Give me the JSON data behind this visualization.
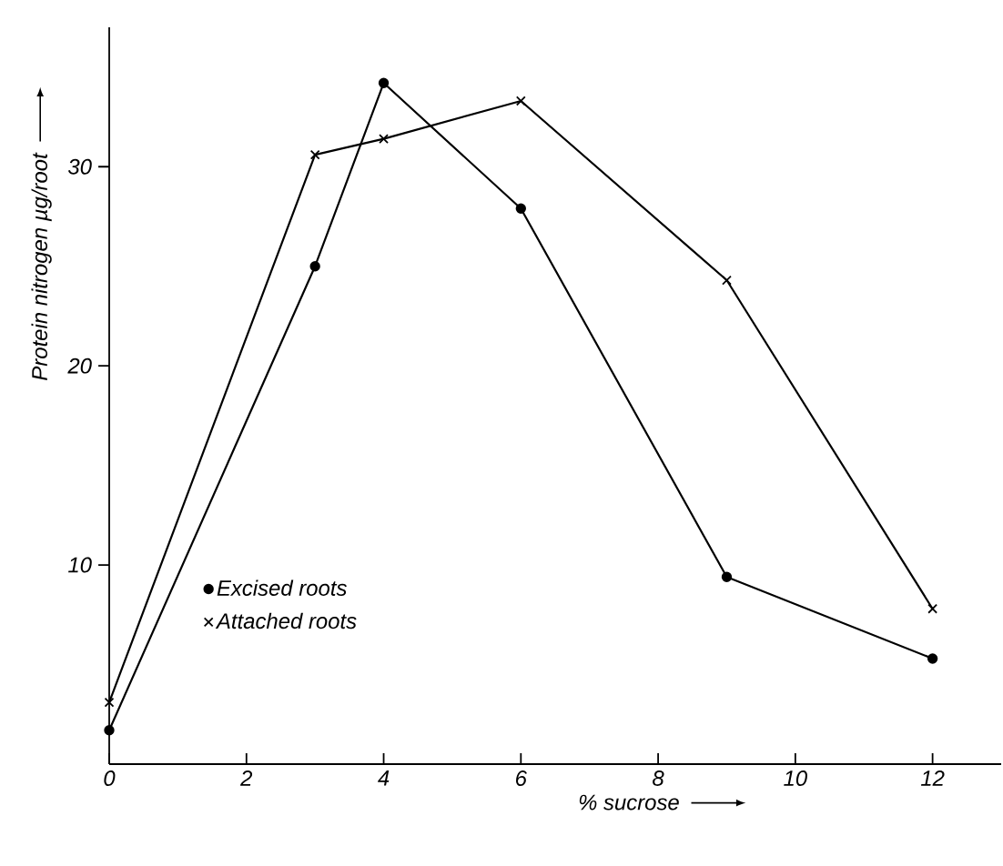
{
  "chart_data": {
    "type": "line",
    "xlabel": "% sucrose",
    "ylabel": "Protein nitrogen µg/root",
    "x": [
      0,
      3,
      4,
      6,
      9,
      12
    ],
    "series": [
      {
        "name": "Excised roots",
        "color": "#000000",
        "marker": "circle",
        "values": [
          1.7,
          25.0,
          34.2,
          27.9,
          9.4,
          5.3
        ]
      },
      {
        "name": "Attached roots",
        "color": "#000000",
        "marker": "cross",
        "values": [
          3.1,
          30.6,
          31.4,
          33.3,
          24.3,
          7.8
        ]
      }
    ],
    "xlim": [
      0,
      13
    ],
    "ylim": [
      0,
      37
    ],
    "xticks": [
      0,
      2,
      4,
      6,
      8,
      10,
      12
    ],
    "yticks": [
      10,
      20,
      30
    ],
    "grid": false,
    "legend": "bottom left",
    "line_style": "solid"
  }
}
